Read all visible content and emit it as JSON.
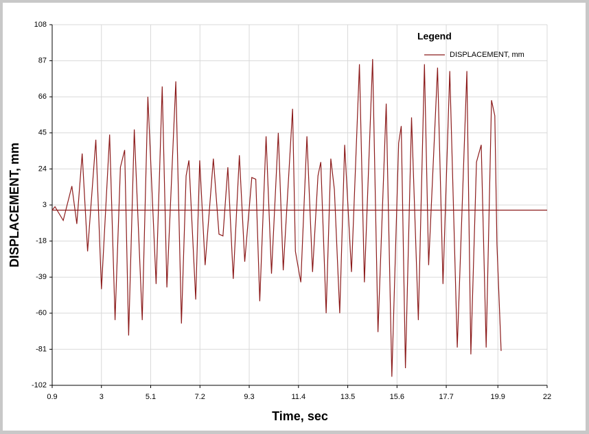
{
  "chart_data": {
    "type": "line",
    "xlabel": "Time,  sec",
    "ylabel": "DISPLACEMENT,  mm",
    "legend_title": "Legend",
    "legend": "top-right",
    "grid": true,
    "xlim": [
      0.9,
      22.0
    ],
    "xticks": [
      0.9,
      3.0,
      5.1,
      7.2,
      9.3,
      11.4,
      13.5,
      15.6,
      17.7,
      19.9,
      22.0
    ],
    "ylim": [
      -102,
      108
    ],
    "yticks": [
      108,
      87,
      66,
      45,
      24,
      3,
      -18,
      -39,
      -60,
      -81,
      -102
    ],
    "baseline": 0,
    "x": [
      0.9,
      1.02,
      1.37,
      1.74,
      1.95,
      2.18,
      2.41,
      2.76,
      3.0,
      3.35,
      3.58,
      3.81,
      3.99,
      4.16,
      4.4,
      4.74,
      4.98,
      5.33,
      5.59,
      5.79,
      6.17,
      6.41,
      6.61,
      6.73,
      7.02,
      7.19,
      7.42,
      7.77,
      8.01,
      8.18,
      8.39,
      8.62,
      8.88,
      9.11,
      9.41,
      9.58,
      9.75,
      10.02,
      10.25,
      10.54,
      10.75,
      11.15,
      11.27,
      11.5,
      11.76,
      12.0,
      12.23,
      12.35,
      12.58,
      12.78,
      12.93,
      13.16,
      13.37,
      13.66,
      14.0,
      14.21,
      14.56,
      14.79,
      15.14,
      15.38,
      15.67,
      15.78,
      15.96,
      16.22,
      16.51,
      16.77,
      16.95,
      17.33,
      17.56,
      17.85,
      18.17,
      18.58,
      18.75,
      18.99,
      19.19,
      19.4,
      19.63,
      19.77,
      19.86,
      20.04
    ],
    "series": [
      {
        "name": "DISPLACEMENT, mm",
        "color": "#8b1a1a",
        "values": [
          0,
          2,
          -6,
          14,
          -8,
          33,
          -24,
          41,
          -46,
          44,
          -64,
          25,
          35,
          -73,
          47,
          -64,
          66,
          -43,
          72,
          -45,
          75,
          -66,
          20,
          29,
          -52,
          29,
          -32,
          30,
          -14,
          -15,
          25,
          -40,
          32,
          -30,
          19,
          18,
          -53,
          43,
          -37,
          45,
          -35,
          59,
          -24,
          -42,
          43,
          -36,
          20,
          28,
          -60,
          30,
          12,
          -60,
          38,
          -36,
          85,
          -42,
          88,
          -71,
          62,
          -97,
          39,
          49,
          -92,
          54,
          -64,
          85,
          -32,
          83,
          -43,
          81,
          -80,
          81,
          -84,
          28,
          38,
          -80,
          64,
          55,
          -20,
          -82
        ]
      }
    ]
  }
}
